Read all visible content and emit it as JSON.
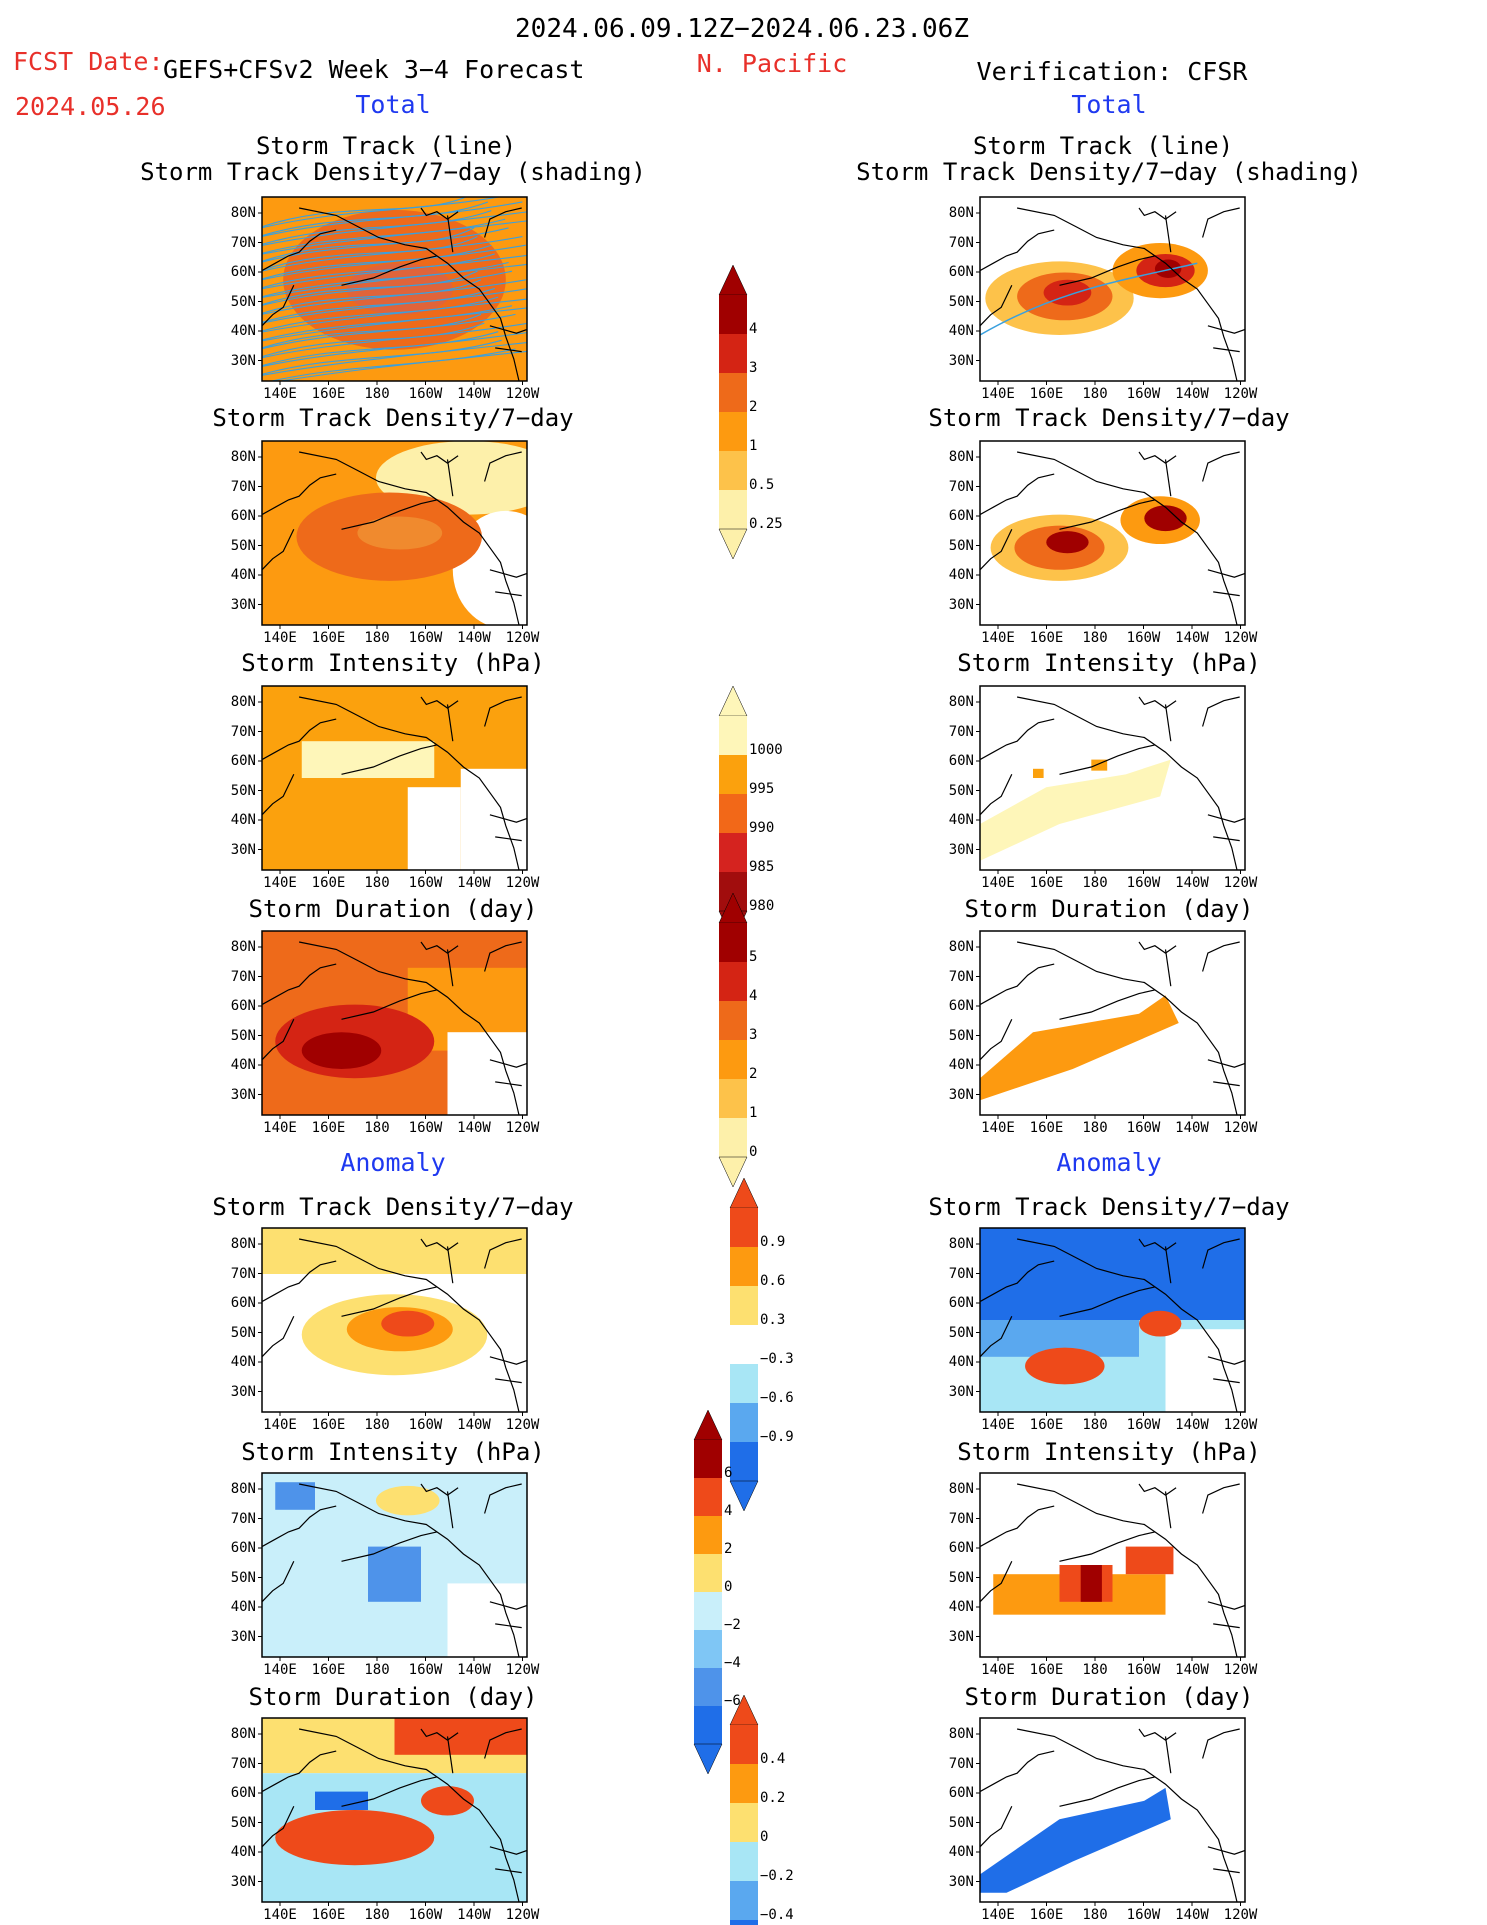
{
  "header": {
    "period": "2024.06.09.12Z−2024.06.23.06Z",
    "region": "N. Pacific",
    "fcst_label": "FCST Date:",
    "fcst_model": "GEFS+CFSv2 Week 3−4 Forecast",
    "fcst_date": "2024.05.26",
    "verification": "Verification: CFSR"
  },
  "section": {
    "total": "Total",
    "anomaly": "Anomaly"
  },
  "panels": {
    "track_line": "Storm Track (line)",
    "track_shading": "Storm Track Density/7−day (shading)",
    "density": "Storm Track Density/7−day",
    "intensity": "Storm Intensity (hPa)",
    "duration": "Storm Duration (day)"
  },
  "axes": {
    "lat": [
      "80N",
      "70N",
      "60N",
      "50N",
      "40N",
      "30N"
    ],
    "lon": [
      "140E",
      "160E",
      "180",
      "160W",
      "140W",
      "120W"
    ]
  },
  "colorbars": {
    "density": {
      "labels": [
        "4",
        "3",
        "2",
        "1",
        "0.5",
        "0.25"
      ],
      "colors": [
        "#a00000",
        "#d42414",
        "#ee6a1a",
        "#fd9a10",
        "#fdc24a",
        "#fdf0aa"
      ]
    },
    "intensity": {
      "labels": [
        "1000",
        "995",
        "990",
        "985",
        "980"
      ],
      "colors": [
        "#fef6b9",
        "#fba10d",
        "#f26818",
        "#d5231f",
        "#a10d0d"
      ]
    },
    "duration": {
      "labels": [
        "5",
        "4",
        "3",
        "2",
        "1",
        "0"
      ],
      "colors": [
        "#a00000",
        "#d42414",
        "#ee6a1a",
        "#fd9a10",
        "#fdc24a",
        "#fdf0aa"
      ]
    },
    "anom_density": {
      "labels": [
        "0.9",
        "0.6",
        "0.3",
        "−0.3",
        "−0.6",
        "−0.9"
      ],
      "colors": [
        "#ee4a1a",
        "#fd9a10",
        "#fde070",
        "#ffffff",
        "#a8e6f5",
        "#5aa8ef",
        "#1f6ee8"
      ]
    },
    "anom_intensity": {
      "labels": [
        "6",
        "4",
        "2",
        "0",
        "−2",
        "−4",
        "−6"
      ],
      "colors": [
        "#a00000",
        "#ee4a1a",
        "#fd9a10",
        "#fde070",
        "#c9effa",
        "#7fc6f5",
        "#4e93ea",
        "#1f6ee8"
      ]
    },
    "anom_duration": {
      "labels": [
        "0.4",
        "0.2",
        "0",
        "−0.2",
        "−0.4"
      ],
      "colors": [
        "#ee4a1a",
        "#fd9a10",
        "#fde070",
        "#a8e6f5",
        "#5aa8ef",
        "#1f6ee8"
      ]
    }
  },
  "legend_colors": {
    "track_line": "#3aa0de",
    "land_outline": "#000000"
  }
}
